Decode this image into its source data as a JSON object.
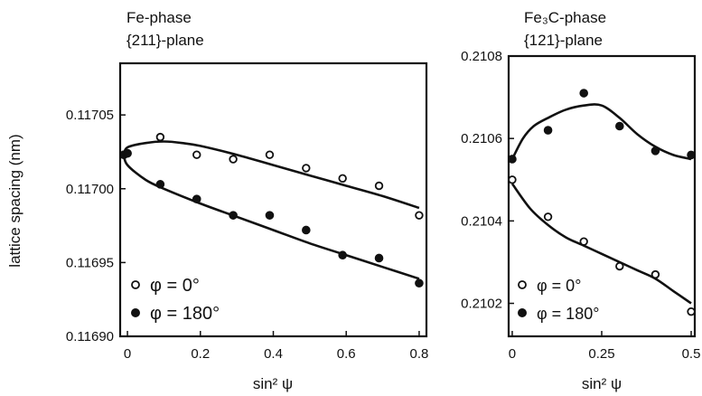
{
  "ylabel_shared": "lattice spacing (nm)",
  "chart_data": [
    {
      "type": "scatter",
      "title_line1": "Fe-phase",
      "title_line2": "{211}-plane",
      "xlabel": "sin² ψ",
      "ylabel": "lattice spacing (nm)",
      "xlim": [
        -0.02,
        0.82
      ],
      "ylim": [
        0.1169,
        0.117085
      ],
      "xticks": [
        0,
        0.2,
        0.4,
        0.6,
        0.8
      ],
      "xtick_labels": [
        "0",
        "0.2",
        "0.4",
        "0.6",
        "0.8"
      ],
      "yticks": [
        0.1169,
        0.11695,
        0.117,
        0.11705
      ],
      "ytick_labels": [
        "0.11690",
        "0.11695",
        "0.11700",
        "0.11705"
      ],
      "grid": false,
      "legend_position": "bottom-left",
      "series": [
        {
          "name": "φ = 0°",
          "marker": "open-circle",
          "x": [
            -0.01,
            0.0,
            0.09,
            0.19,
            0.29,
            0.39,
            0.49,
            0.59,
            0.69,
            0.8
          ],
          "y": [
            0.117023,
            0.117024,
            0.117035,
            0.117023,
            0.11702,
            0.117023,
            0.117014,
            0.117007,
            0.117002,
            0.116982
          ],
          "fit_x": [
            -0.01,
            0.0,
            0.05,
            0.1,
            0.15,
            0.2,
            0.3,
            0.4,
            0.5,
            0.6,
            0.7,
            0.8
          ],
          "fit_y": [
            0.117023,
            0.117028,
            0.117031,
            0.117032,
            0.117031,
            0.117029,
            0.117023,
            0.117016,
            0.117009,
            0.117002,
            0.116995,
            0.116987
          ]
        },
        {
          "name": "φ = 180°",
          "marker": "filled-circle",
          "x": [
            -0.01,
            0.0,
            0.09,
            0.19,
            0.29,
            0.39,
            0.49,
            0.59,
            0.69,
            0.8
          ],
          "y": [
            0.117023,
            0.117024,
            0.117003,
            0.116993,
            0.116982,
            0.116982,
            0.116972,
            0.116955,
            0.116953,
            0.116936
          ],
          "fit_x": [
            -0.01,
            0.0,
            0.05,
            0.1,
            0.2,
            0.3,
            0.4,
            0.5,
            0.6,
            0.7,
            0.8
          ],
          "fit_y": [
            0.117023,
            0.117016,
            0.117006,
            0.117,
            0.11699,
            0.116981,
            0.116972,
            0.116963,
            0.116955,
            0.116947,
            0.116939
          ]
        }
      ]
    },
    {
      "type": "scatter",
      "title_line1": "Fe₃C-phase",
      "title_line2": "{121}-plane",
      "xlabel": "sin² ψ",
      "xlim": [
        -0.01,
        0.51
      ],
      "ylim": [
        0.21012,
        0.2108
      ],
      "xticks": [
        0,
        0.25,
        0.5
      ],
      "xtick_labels": [
        "0",
        "0.25",
        "0.5"
      ],
      "yticks": [
        0.2102,
        0.2104,
        0.2106,
        0.2108
      ],
      "ytick_labels": [
        "0.2102",
        "0.2104",
        "0.2106",
        "0.2108"
      ],
      "grid": false,
      "legend_position": "bottom-left",
      "series": [
        {
          "name": "φ = 0°",
          "marker": "open-circle",
          "x": [
            0.0,
            0.1,
            0.2,
            0.3,
            0.4,
            0.5
          ],
          "y": [
            0.2105,
            0.21041,
            0.21035,
            0.21029,
            0.21027,
            0.21018
          ],
          "fit_x": [
            0.0,
            0.05,
            0.1,
            0.15,
            0.2,
            0.25,
            0.3,
            0.35,
            0.4,
            0.45,
            0.5
          ],
          "fit_y": [
            0.21049,
            0.21043,
            0.21039,
            0.21036,
            0.21034,
            0.21032,
            0.2103,
            0.21028,
            0.21026,
            0.21023,
            0.2102
          ]
        },
        {
          "name": "φ = 180°",
          "marker": "filled-circle",
          "x": [
            0.0,
            0.1,
            0.2,
            0.3,
            0.4,
            0.5
          ],
          "y": [
            0.21055,
            0.21062,
            0.21071,
            0.21063,
            0.21057,
            0.21056
          ],
          "fit_x": [
            0.0,
            0.03,
            0.06,
            0.1,
            0.15,
            0.2,
            0.25,
            0.3,
            0.35,
            0.4,
            0.45,
            0.5
          ],
          "fit_y": [
            0.21055,
            0.2106,
            0.21063,
            0.21065,
            0.21067,
            0.21068,
            0.21068,
            0.21065,
            0.21061,
            0.21058,
            0.21056,
            0.21055
          ]
        }
      ]
    }
  ]
}
